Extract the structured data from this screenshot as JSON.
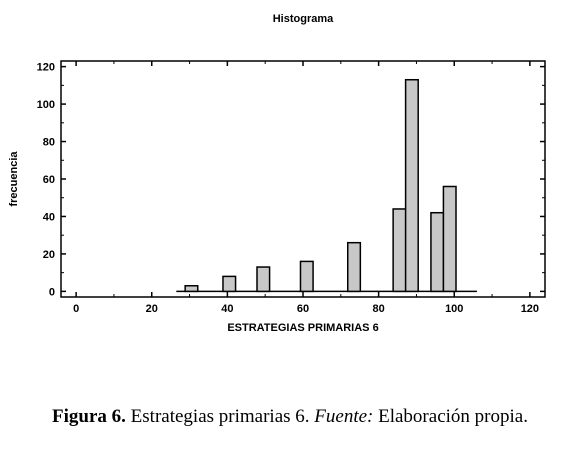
{
  "chart_data": {
    "type": "bar",
    "title": "Histograma",
    "xlabel": "ESTRATEGIAS PRIMARIAS 6",
    "ylabel": "frecuencia",
    "xlim": [
      -4,
      124
    ],
    "ylim": [
      -3,
      123
    ],
    "xticks": [
      0,
      20,
      40,
      60,
      80,
      100,
      120
    ],
    "yticks": [
      0,
      20,
      40,
      60,
      80,
      100,
      120
    ],
    "bin_width": 3.33,
    "baseline_range": [
      26.5,
      106
    ],
    "bars": [
      {
        "center": 30.5,
        "value": 3
      },
      {
        "center": 40.5,
        "value": 8
      },
      {
        "center": 49.5,
        "value": 13
      },
      {
        "center": 61.0,
        "value": 16
      },
      {
        "center": 73.5,
        "value": 26
      },
      {
        "center": 85.5,
        "value": 44
      },
      {
        "center": 88.8,
        "value": 113
      },
      {
        "center": 95.5,
        "value": 42
      },
      {
        "center": 98.8,
        "value": 56
      }
    ],
    "grid": false,
    "bar_color": "#c8c8c8"
  },
  "caption": {
    "label": "Figura 6.",
    "text": " Estrategias primarias 6. ",
    "source_label": "Fuente:",
    "source_text": " Elaboración propia."
  }
}
